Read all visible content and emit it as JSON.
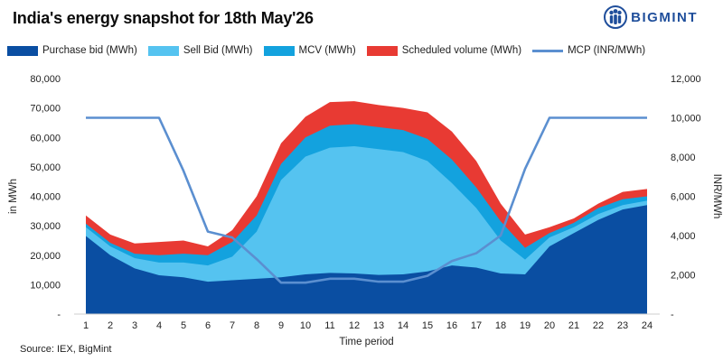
{
  "header": {
    "title": "India's energy snapshot for 18th May'26",
    "logo_text": "BIGMINT",
    "logo_icon": "bigmint-people-icon"
  },
  "source": "Source: IEX, BigMint",
  "colors": {
    "purchase": "#0a4ea2",
    "sell": "#55c3f0",
    "mcv": "#13a2de",
    "scheduled": "#e83a33",
    "mcp": "#5b8fd0",
    "brand": "#1f4e9b"
  },
  "chart_data": {
    "type": "area",
    "title": "India's energy snapshot for 18th May'26",
    "xlabel": "Time period",
    "ylabel": "in MWh",
    "y2label": "INR/MWh",
    "ylim": [
      0,
      80000
    ],
    "y2lim": [
      0,
      12000
    ],
    "y_ticks": [
      "-",
      "10,000",
      "20,000",
      "30,000",
      "40,000",
      "50,000",
      "60,000",
      "70,000",
      "80,000"
    ],
    "y2_ticks": [
      "-",
      "2,000",
      "4,000",
      "6,000",
      "8,000",
      "10,000",
      "12,000"
    ],
    "x": [
      1,
      2,
      3,
      4,
      5,
      6,
      7,
      8,
      9,
      10,
      11,
      12,
      13,
      14,
      15,
      16,
      17,
      18,
      19,
      20,
      21,
      22,
      23,
      24
    ],
    "legend_position": "top",
    "series": [
      {
        "name": "Purchase bid (MWh)",
        "kind": "area",
        "values": [
          26500,
          20000,
          15500,
          13200,
          12500,
          11000,
          11500,
          12000,
          12500,
          13500,
          14000,
          13800,
          13300,
          13500,
          14500,
          16500,
          15800,
          13800,
          13500,
          23000,
          27500,
          32000,
          35500,
          37000
        ]
      },
      {
        "name": "Sell Bid (MWh)",
        "kind": "area",
        "values": [
          29500,
          23000,
          19000,
          17500,
          17500,
          16500,
          19500,
          28000,
          45500,
          53500,
          56500,
          57000,
          56000,
          55000,
          52000,
          44500,
          36000,
          25000,
          18500,
          26000,
          29500,
          34000,
          37000,
          38500
        ]
      },
      {
        "name": "MCV (MWh)",
        "kind": "area",
        "values": [
          30700,
          24200,
          20500,
          20000,
          20500,
          20000,
          24500,
          33500,
          51000,
          60000,
          64000,
          64500,
          63500,
          62500,
          59500,
          52500,
          43000,
          31500,
          22500,
          27500,
          31000,
          36000,
          39000,
          40000
        ]
      },
      {
        "name": "Scheduled volume (MWh)",
        "kind": "area",
        "values": [
          33500,
          27000,
          24000,
          24500,
          25000,
          23000,
          28500,
          40000,
          58000,
          67000,
          72000,
          72300,
          71000,
          70000,
          68500,
          62000,
          52000,
          37500,
          27000,
          29500,
          32500,
          37500,
          41500,
          42500
        ]
      },
      {
        "name": "MCP (INR/MWh)",
        "kind": "line",
        "axis": "right",
        "values": [
          10000,
          10000,
          10000,
          10000,
          7300,
          4200,
          3900,
          2800,
          1600,
          1600,
          1800,
          1800,
          1650,
          1650,
          1950,
          2700,
          3100,
          4000,
          7400,
          10000,
          10000,
          10000,
          10000,
          10000
        ]
      }
    ]
  }
}
